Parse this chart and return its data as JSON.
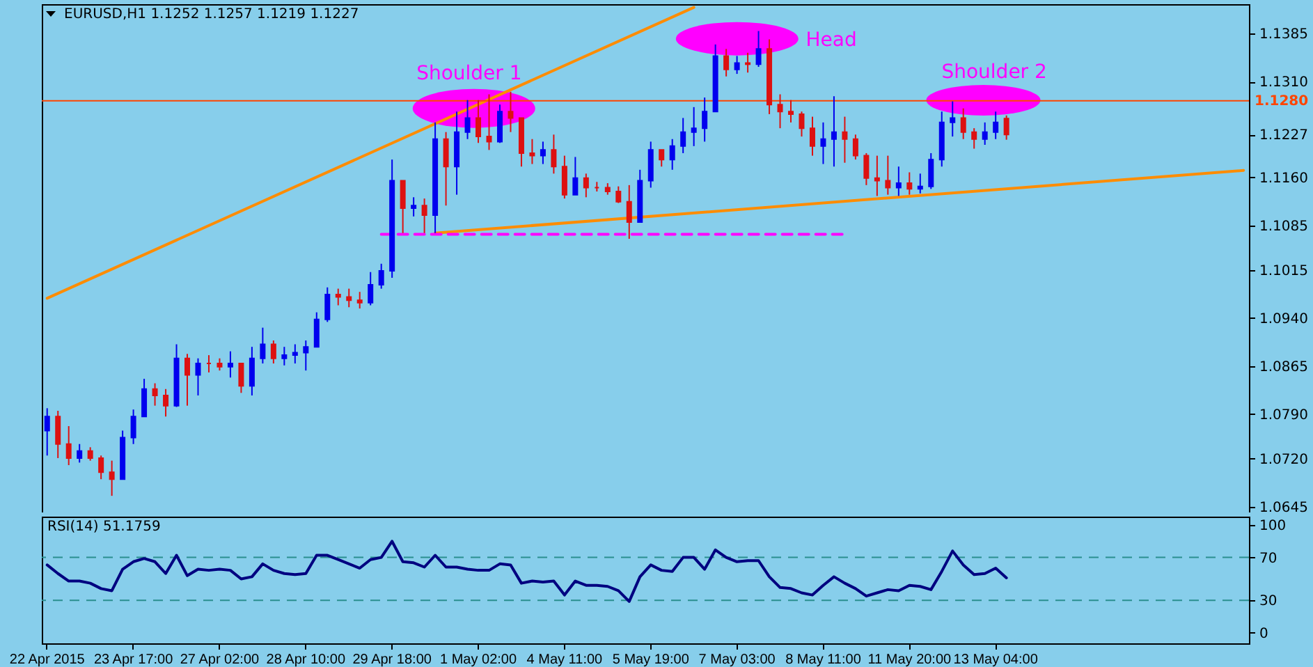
{
  "chart_data": [
    {
      "type": "candlestick",
      "title": "EURUSD,H1  1.1252 1.1257 1.1219 1.1227",
      "tick_labels": "y",
      "categories": [
        null,
        null,
        null,
        null,
        null,
        null,
        null,
        null,
        null,
        null,
        null,
        null,
        null,
        null,
        null,
        null,
        null,
        null,
        null,
        null,
        null,
        null,
        null,
        null,
        null,
        null,
        null,
        null,
        null,
        null,
        null,
        null,
        null,
        null,
        null,
        null,
        null,
        null,
        null,
        null,
        null,
        null,
        null,
        null,
        null,
        null,
        null,
        null,
        null,
        null,
        null,
        null,
        null,
        null,
        null,
        null,
        null,
        null,
        null,
        null,
        null,
        null,
        null,
        null,
        null,
        null,
        null,
        null,
        null,
        null,
        null,
        null,
        null,
        null,
        null,
        null,
        null,
        null,
        null,
        null,
        null,
        null,
        null,
        null,
        null,
        null,
        null,
        null,
        null,
        null,
        null,
        null,
        null,
        null,
        null,
        null,
        null,
        null,
        null,
        null,
        null,
        null,
        null,
        null,
        null,
        null,
        null,
        null,
        null,
        null,
        null,
        null
      ],
      "ohlc": [
        [
          1.0764,
          1.0799,
          1.0725,
          1.0786
        ],
        [
          1.0786,
          1.0795,
          1.0721,
          1.0743
        ],
        [
          1.0743,
          1.0771,
          1.071,
          1.0721
        ],
        [
          1.0721,
          1.0743,
          1.0714,
          1.0732
        ],
        [
          1.0732,
          1.0738,
          1.0717,
          1.0721
        ],
        [
          1.0721,
          1.0725,
          1.0688,
          1.0699
        ],
        [
          1.0699,
          1.0717,
          1.0662,
          1.0688
        ],
        [
          1.0688,
          1.0764,
          1.0688,
          1.0753
        ],
        [
          1.0753,
          1.0797,
          1.0743,
          1.0786
        ],
        [
          1.0786,
          1.0845,
          1.0786,
          1.0829
        ],
        [
          1.0829,
          1.0838,
          1.0803,
          1.0819
        ],
        [
          1.0819,
          1.0829,
          1.0786,
          1.0803
        ],
        [
          1.0803,
          1.0899,
          1.0801,
          1.0877
        ],
        [
          1.0877,
          1.0884,
          1.0803,
          1.0851
        ],
        [
          1.0851,
          1.0877,
          1.0819,
          1.0869
        ],
        [
          1.0869,
          1.0882,
          1.0855,
          1.0869
        ],
        [
          1.0869,
          1.0877,
          1.0858,
          1.0864
        ],
        [
          1.0864,
          1.0888,
          1.0847,
          1.0869
        ],
        [
          1.0869,
          1.0869,
          1.0823,
          1.0834
        ],
        [
          1.0834,
          1.0895,
          1.0819,
          1.0877
        ],
        [
          1.0877,
          1.0925,
          1.0869,
          1.0899
        ],
        [
          1.0899,
          1.0905,
          1.0869,
          1.0877
        ],
        [
          1.0877,
          1.0895,
          1.0866,
          1.0882
        ],
        [
          1.0882,
          1.0899,
          1.0869,
          1.0886
        ],
        [
          1.0886,
          1.0905,
          1.0858,
          1.0895
        ],
        [
          1.0895,
          1.0949,
          1.0895,
          1.0938
        ],
        [
          1.0938,
          1.0988,
          1.0934,
          1.0977
        ],
        [
          1.0977,
          1.0986,
          1.096,
          1.0973
        ],
        [
          1.0973,
          1.0986,
          1.0957,
          1.0968
        ],
        [
          1.0968,
          1.0981,
          1.0955,
          1.0964
        ],
        [
          1.0964,
          1.1012,
          1.096,
          1.0992
        ],
        [
          1.0992,
          1.1025,
          1.0986,
          1.1014
        ],
        [
          1.1014,
          1.1188,
          1.1003,
          1.1155
        ],
        [
          1.1155,
          1.1155,
          1.1073,
          1.1112
        ],
        [
          1.1112,
          1.1129,
          1.1099,
          1.1116
        ],
        [
          1.1116,
          1.1127,
          1.1073,
          1.1101
        ],
        [
          1.1101,
          1.1246,
          1.1073,
          1.122
        ],
        [
          1.122,
          1.1231,
          1.1116,
          1.1177
        ],
        [
          1.1177,
          1.1263,
          1.1133,
          1.1231
        ],
        [
          1.1231,
          1.1281,
          1.122,
          1.1253
        ],
        [
          1.1253,
          1.1281,
          1.1214,
          1.1224
        ],
        [
          1.1224,
          1.129,
          1.1203,
          1.1216
        ],
        [
          1.1216,
          1.1274,
          1.1214,
          1.1263
        ],
        [
          1.1263,
          1.1294,
          1.1231,
          1.1253
        ],
        [
          1.1253,
          1.1253,
          1.1177,
          1.1198
        ],
        [
          1.1198,
          1.122,
          1.1181,
          1.1194
        ],
        [
          1.1194,
          1.1216,
          1.1181,
          1.1203
        ],
        [
          1.1203,
          1.1227,
          1.1166,
          1.1177
        ],
        [
          1.1177,
          1.1194,
          1.1127,
          1.1133
        ],
        [
          1.1133,
          1.1192,
          1.1133,
          1.1159
        ],
        [
          1.1159,
          1.1166,
          1.1129,
          1.1144
        ],
        [
          1.1144,
          1.1153,
          1.1138,
          1.1144
        ],
        [
          1.1144,
          1.1151,
          1.1133,
          1.1138
        ],
        [
          1.1138,
          1.1146,
          1.112,
          1.1122
        ],
        [
          1.1122,
          1.1148,
          1.1064,
          1.109
        ],
        [
          1.109,
          1.1172,
          1.109,
          1.1155
        ],
        [
          1.1155,
          1.1216,
          1.1144,
          1.1203
        ],
        [
          1.1203,
          1.1203,
          1.1177,
          1.1188
        ],
        [
          1.1188,
          1.122,
          1.1172,
          1.1209
        ],
        [
          1.1209,
          1.1253,
          1.1198,
          1.1231
        ],
        [
          1.1231,
          1.127,
          1.1209,
          1.1237
        ],
        [
          1.1237,
          1.1285,
          1.1216,
          1.1263
        ],
        [
          1.1263,
          1.1368,
          1.1263,
          1.135
        ],
        [
          1.135,
          1.1361,
          1.1318,
          1.1329
        ],
        [
          1.1329,
          1.135,
          1.1322,
          1.1339
        ],
        [
          1.1339,
          1.1355,
          1.1324,
          1.1337
        ],
        [
          1.1337,
          1.1389,
          1.1333,
          1.1361
        ],
        [
          1.1361,
          1.1376,
          1.1259,
          1.1274
        ],
        [
          1.1274,
          1.129,
          1.1237,
          1.1263
        ],
        [
          1.1263,
          1.1281,
          1.1246,
          1.1259
        ],
        [
          1.1259,
          1.1263,
          1.1224,
          1.1237
        ],
        [
          1.1237,
          1.1255,
          1.1194,
          1.1209
        ],
        [
          1.1209,
          1.1246,
          1.1181,
          1.122
        ],
        [
          1.122,
          1.1287,
          1.1177,
          1.1231
        ],
        [
          1.1231,
          1.1255,
          1.1183,
          1.122
        ],
        [
          1.122,
          1.1227,
          1.1188,
          1.1194
        ],
        [
          1.1194,
          1.1198,
          1.1148,
          1.1159
        ],
        [
          1.1159,
          1.1194,
          1.1131,
          1.1155
        ],
        [
          1.1155,
          1.1194,
          1.1133,
          1.1144
        ],
        [
          1.1144,
          1.1177,
          1.1131,
          1.1151
        ],
        [
          1.1151,
          1.1168,
          1.1133,
          1.1142
        ],
        [
          1.1142,
          1.1166,
          1.1135,
          1.1146
        ],
        [
          1.1146,
          1.1198,
          1.1142,
          1.1188
        ],
        [
          1.1188,
          1.1263,
          1.1177,
          1.1246
        ],
        [
          1.1246,
          1.1279,
          1.1224,
          1.1253
        ],
        [
          1.1253,
          1.1268,
          1.122,
          1.1231
        ],
        [
          1.1231,
          1.1237,
          1.1205,
          1.122
        ],
        [
          1.122,
          1.1246,
          1.1211,
          1.1231
        ],
        [
          1.1231,
          1.1263,
          1.122,
          1.1246
        ],
        [
          1.1252,
          1.1257,
          1.1219,
          1.1227
        ],
        null,
        null,
        null,
        null,
        null,
        null,
        null,
        null,
        null,
        null,
        null,
        null,
        null,
        null,
        null,
        null,
        null,
        null,
        null,
        null,
        null,
        null
      ],
      "colors": [
        "#0000ee",
        "#dd1111",
        "#dd1111",
        "#0000ee",
        "#dd1111",
        "#dd1111",
        "#dd1111",
        "#0000ee",
        "#0000ee",
        "#0000ee",
        "#dd1111",
        "#dd1111",
        "#0000ee",
        "#dd1111",
        "#0000ee",
        "#dd1111",
        "#dd1111",
        "#0000ee",
        "#dd1111",
        "#0000ee",
        "#0000ee",
        "#dd1111",
        "#0000ee",
        "#0000ee",
        "#0000ee",
        "#0000ee",
        "#0000ee",
        "#dd1111",
        "#dd1111",
        "#dd1111",
        "#0000ee",
        "#0000ee",
        "#0000ee",
        "#dd1111",
        "#0000ee",
        "#dd1111",
        "#0000ee",
        "#dd1111",
        "#0000ee",
        "#0000ee",
        "#dd1111",
        "#dd1111",
        "#0000ee",
        "#dd1111",
        "#dd1111",
        "#dd1111",
        "#0000ee",
        "#dd1111",
        "#dd1111",
        "#0000ee",
        "#dd1111",
        "#dd1111",
        "#dd1111",
        "#dd1111",
        "#dd1111",
        "#0000ee",
        "#0000ee",
        "#dd1111",
        "#0000ee",
        "#0000ee",
        "#0000ee",
        "#0000ee",
        "#0000ee",
        "#dd1111",
        "#0000ee",
        "#dd1111",
        "#0000ee",
        "#dd1111",
        "#dd1111",
        "#dd1111",
        "#dd1111",
        "#dd1111",
        "#0000ee",
        "#0000ee",
        "#dd1111",
        "#dd1111",
        "#dd1111",
        "#dd1111",
        "#dd1111",
        "#0000ee",
        "#dd1111",
        "#0000ee",
        "#0000ee",
        "#0000ee",
        "#0000ee",
        "#dd1111",
        "#dd1111",
        "#0000ee",
        "#0000ee",
        "#dd1111",
        null,
        null,
        null,
        null,
        null,
        null,
        null,
        null,
        null,
        null,
        null,
        null,
        null,
        null,
        null,
        null,
        null,
        null,
        null,
        null,
        null,
        null
      ],
      "series": [
        {
          "type": "line",
          "color": "#ff8c00",
          "line_style": "solid",
          "values": [
            1.0971,
            null,
            null,
            null,
            null,
            null,
            null,
            null,
            null,
            null,
            null,
            null,
            null,
            null,
            null,
            null,
            null,
            null,
            null,
            null,
            null,
            null,
            null,
            null,
            null,
            null,
            null,
            null,
            null,
            null,
            null,
            null,
            null,
            null,
            null,
            null,
            null,
            null,
            null,
            null,
            null,
            null,
            null,
            null,
            null,
            null,
            null,
            null,
            null,
            null,
            null,
            null,
            null,
            null,
            null,
            null,
            null,
            null,
            null,
            null,
            1.1426,
            null,
            null,
            null,
            null,
            null,
            null,
            null,
            null,
            null,
            null,
            null,
            null,
            null,
            null,
            null,
            null,
            null,
            null,
            null,
            null,
            null,
            null,
            null,
            null,
            null,
            null,
            null,
            null,
            null,
            null,
            null,
            null,
            null,
            null,
            null,
            null,
            null,
            null,
            null,
            null,
            null,
            null,
            null,
            null,
            null,
            null,
            null,
            null,
            null,
            null,
            null
          ]
        },
        {
          "type": "line",
          "color": "#ff8c00",
          "line_style": "solid",
          "values": [
            null,
            null,
            null,
            null,
            null,
            null,
            null,
            null,
            null,
            null,
            null,
            null,
            null,
            null,
            null,
            null,
            null,
            null,
            null,
            null,
            null,
            null,
            null,
            null,
            null,
            null,
            null,
            null,
            null,
            null,
            null,
            null,
            null,
            null,
            null,
            null,
            1.1073,
            null,
            null,
            null,
            null,
            null,
            null,
            null,
            null,
            null,
            null,
            null,
            null,
            null,
            null,
            null,
            null,
            null,
            null,
            null,
            null,
            null,
            null,
            null,
            null,
            null,
            null,
            null,
            null,
            null,
            null,
            null,
            null,
            null,
            null,
            null,
            null,
            null,
            null,
            null,
            null,
            null,
            null,
            null,
            null,
            null,
            null,
            null,
            null,
            null,
            null,
            null,
            null,
            null,
            null,
            null,
            null,
            null,
            null,
            null,
            null,
            null,
            null,
            null,
            null,
            null,
            null,
            null,
            null,
            null,
            null,
            null,
            null,
            null,
            null,
            1.1171
          ]
        },
        {
          "type": "line",
          "color": "#ff00ff",
          "line_style": "dashed",
          "values": [
            null,
            null,
            null,
            null,
            null,
            null,
            null,
            null,
            null,
            null,
            null,
            null,
            null,
            null,
            null,
            null,
            null,
            null,
            null,
            null,
            null,
            null,
            null,
            null,
            null,
            null,
            null,
            null,
            null,
            null,
            null,
            1.1071,
            null,
            null,
            null,
            null,
            null,
            null,
            null,
            null,
            null,
            null,
            null,
            null,
            null,
            null,
            null,
            null,
            null,
            null,
            null,
            null,
            null,
            null,
            null,
            null,
            null,
            null,
            null,
            null,
            null,
            null,
            null,
            null,
            null,
            null,
            null,
            null,
            null,
            null,
            null,
            null,
            null,
            null,
            1.1071,
            null,
            null,
            null,
            null,
            null,
            null,
            null,
            null,
            null,
            null,
            null,
            null,
            null,
            null,
            null,
            null,
            null,
            null,
            null,
            null,
            null,
            null,
            null,
            null,
            null,
            null,
            null,
            null,
            null,
            null,
            null,
            null,
            null,
            null,
            null,
            null,
            null
          ]
        }
      ],
      "ylim": [
        1.0636,
        1.1431
      ],
      "yticks": [
        1.0645,
        {
          "value": 1.072,
          "label": "1.0720"
        },
        {
          "value": 1.079,
          "label": "1.0790"
        },
        1.0865,
        {
          "value": 1.094,
          "label": "1.0940"
        },
        1.1015,
        1.1085,
        {
          "value": 1.116,
          "label": "1.1160"
        },
        1.1227,
        {
          "value": 1.131,
          "label": "1.1310"
        },
        1.1385
      ],
      "ref_lines": [
        {
          "axis": "y",
          "value": 1.128,
          "label": "1.1280",
          "color": "#ff4500",
          "line_style": "solid"
        }
      ],
      "annotations": [
        "Shoulder 1",
        "Head",
        "Shoulder 2"
      ]
    },
    {
      "type": "line",
      "title": "RSI(14) 51.1759",
      "color": "#000080",
      "categories": [
        "22 Apr 2015",
        null,
        null,
        null,
        null,
        null,
        null,
        null,
        "23 Apr 17:00",
        null,
        null,
        null,
        null,
        null,
        null,
        null,
        "27 Apr 02:00",
        null,
        null,
        null,
        null,
        null,
        null,
        null,
        "28 Apr 10:00",
        null,
        null,
        null,
        null,
        null,
        null,
        null,
        "29 Apr 18:00",
        null,
        null,
        null,
        null,
        null,
        null,
        null,
        "1 May 02:00",
        null,
        null,
        null,
        null,
        null,
        null,
        null,
        "4 May 11:00",
        null,
        null,
        null,
        null,
        null,
        null,
        null,
        "5 May 19:00",
        null,
        null,
        null,
        null,
        null,
        null,
        null,
        "7 May 03:00",
        null,
        null,
        null,
        null,
        null,
        null,
        null,
        "8 May 11:00",
        null,
        null,
        null,
        null,
        null,
        null,
        null,
        "11 May 20:00",
        null,
        null,
        null,
        null,
        null,
        null,
        null,
        "13 May 04:00",
        null,
        null,
        null,
        null,
        null,
        null,
        null,
        null,
        null,
        null,
        null,
        null,
        null,
        null,
        null,
        null,
        null,
        null,
        null,
        null,
        null,
        null,
        null
      ],
      "values": [
        63,
        55,
        48,
        48,
        46,
        41,
        39,
        59,
        66,
        69,
        66,
        55,
        72,
        53,
        59,
        58,
        59,
        58,
        50,
        52,
        64,
        58,
        55,
        54,
        55,
        72,
        72,
        68,
        64,
        60,
        68,
        70,
        85,
        66,
        65,
        61,
        72,
        61,
        61,
        59,
        58,
        58,
        64,
        63,
        46,
        48,
        47,
        48,
        35,
        48,
        44,
        44,
        43,
        39,
        29,
        52,
        63,
        58,
        57,
        70,
        70,
        59,
        77,
        70,
        66,
        67,
        67,
        52,
        42,
        41,
        37,
        35,
        44,
        52,
        46,
        41,
        34,
        37,
        40,
        39,
        44,
        43,
        40,
        57,
        76,
        63,
        54,
        55,
        60,
        51,
        null,
        null,
        null,
        null,
        null,
        null,
        null,
        null,
        null,
        null,
        null,
        null,
        null,
        null,
        null,
        null,
        null,
        null,
        null,
        null,
        null,
        null
      ],
      "ylim": [
        -10,
        108
      ],
      "yticks": [
        0,
        30,
        70,
        100
      ],
      "ref_lines": [
        {
          "axis": "y",
          "value": 70,
          "color": "#2a8f8f",
          "line_style": "dashed"
        },
        {
          "axis": "y",
          "value": 30,
          "color": "#2a8f8f",
          "line_style": "dashed"
        }
      ]
    }
  ]
}
